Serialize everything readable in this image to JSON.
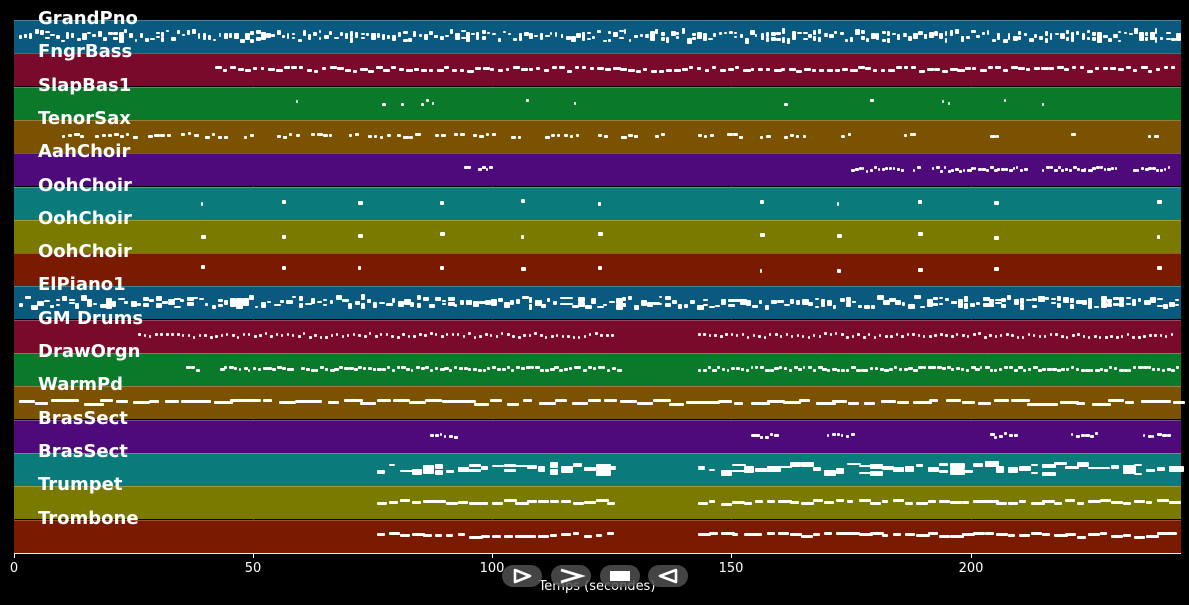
{
  "chart_data": {
    "type": "piano-roll",
    "xlabel": "Temps (secondes)",
    "xlim": [
      0,
      244
    ],
    "xticks": [
      0,
      50,
      100,
      150,
      200
    ],
    "tracks": [
      {
        "name": "GrandPno",
        "color": "#0a5a80",
        "density": "dense",
        "segments": [
          [
            1,
            243
          ]
        ],
        "step": 1.1,
        "len": 0.8,
        "size": "big"
      },
      {
        "name": "FngrBass",
        "color": "#7a0a2a",
        "density": "mid",
        "segments": [
          [
            42,
            243
          ]
        ],
        "step": 1.6,
        "len": 1.2,
        "size": "small"
      },
      {
        "name": "SlapBas1",
        "color": "#0a7a2a",
        "density": "sparse",
        "segments": [
          [
            59,
            60
          ],
          [
            77,
            78
          ],
          [
            81,
            82
          ],
          [
            85,
            88
          ],
          [
            107,
            108
          ],
          [
            117,
            118
          ],
          [
            161,
            162
          ],
          [
            179,
            180
          ],
          [
            194,
            196
          ],
          [
            207,
            208
          ],
          [
            215,
            216
          ]
        ],
        "step": 1.2,
        "len": 0.6,
        "size": "small"
      },
      {
        "name": "TenorSax",
        "color": "#7a5200",
        "density": "sparse",
        "segments": [
          [
            10,
            14
          ],
          [
            17,
            26
          ],
          [
            28,
            32
          ],
          [
            35,
            38
          ],
          [
            40,
            44
          ],
          [
            48,
            50
          ],
          [
            55,
            59
          ],
          [
            62,
            66
          ],
          [
            70,
            72
          ],
          [
            74,
            78
          ],
          [
            80,
            84
          ],
          [
            88,
            90
          ],
          [
            92,
            94
          ],
          [
            96,
            100
          ],
          [
            104,
            106
          ],
          [
            111,
            118
          ],
          [
            122,
            124
          ],
          [
            127,
            130
          ],
          [
            134,
            136
          ],
          [
            143,
            146
          ],
          [
            149,
            152
          ],
          [
            156,
            158
          ],
          [
            161,
            166
          ],
          [
            173,
            175
          ],
          [
            186,
            188
          ],
          [
            204,
            206
          ],
          [
            221,
            222
          ],
          [
            237,
            239
          ]
        ],
        "step": 1.3,
        "len": 0.9,
        "size": "small"
      },
      {
        "name": "AahChoir",
        "color": "#4e0a7a",
        "density": "mid",
        "segments": [
          [
            94,
            95
          ],
          [
            97,
            100
          ],
          [
            175,
            186
          ],
          [
            188,
            189
          ],
          [
            192,
            212
          ],
          [
            215,
            231
          ],
          [
            234,
            242
          ]
        ],
        "step": 0.8,
        "len": 0.7,
        "size": "small"
      },
      {
        "name": "OohChoir",
        "color": "#0a7a7a",
        "density": "points",
        "segments": [
          [
            39,
            39
          ],
          [
            56,
            56
          ],
          [
            72,
            72
          ],
          [
            89,
            89
          ],
          [
            106,
            106
          ],
          [
            122,
            122
          ],
          [
            156,
            156
          ],
          [
            172,
            172
          ],
          [
            189,
            189
          ],
          [
            205,
            205
          ],
          [
            239,
            239
          ]
        ],
        "step": 1,
        "len": 0.8,
        "size": "small"
      },
      {
        "name": "OohChoir",
        "color": "#7a7a00",
        "density": "points",
        "segments": [
          [
            39,
            39
          ],
          [
            56,
            56
          ],
          [
            72,
            72
          ],
          [
            89,
            89
          ],
          [
            106,
            106
          ],
          [
            122,
            122
          ],
          [
            156,
            156
          ],
          [
            172,
            172
          ],
          [
            189,
            189
          ],
          [
            205,
            205
          ],
          [
            239,
            239
          ]
        ],
        "step": 1,
        "len": 0.8,
        "size": "small"
      },
      {
        "name": "OohChoir",
        "color": "#7a1a00",
        "density": "points",
        "segments": [
          [
            39,
            39
          ],
          [
            56,
            56
          ],
          [
            72,
            72
          ],
          [
            89,
            89
          ],
          [
            106,
            106
          ],
          [
            122,
            122
          ],
          [
            156,
            156
          ],
          [
            172,
            172
          ],
          [
            189,
            189
          ],
          [
            205,
            205
          ],
          [
            239,
            239
          ]
        ],
        "step": 1,
        "len": 0.8,
        "size": "small"
      },
      {
        "name": "ElPiano1",
        "color": "#0a5a80",
        "density": "dense",
        "segments": [
          [
            1,
            243
          ]
        ],
        "step": 1.3,
        "len": 1.1,
        "size": "big"
      },
      {
        "name": "GM Drums",
        "color": "#7a0a2a",
        "density": "dense",
        "segments": [
          [
            26,
            126
          ],
          [
            143,
            243
          ]
        ],
        "step": 1.15,
        "len": 0.5,
        "size": "small"
      },
      {
        "name": "DrawOrgn",
        "color": "#0a7a2a",
        "density": "mid",
        "segments": [
          [
            36,
            38
          ],
          [
            43,
            48
          ],
          [
            49,
            52
          ],
          [
            53,
            58
          ],
          [
            60,
            64
          ],
          [
            65,
            126
          ],
          [
            143,
            243
          ]
        ],
        "step": 1.0,
        "len": 0.8,
        "size": "small"
      },
      {
        "name": "WarmPd",
        "color": "#7a5200",
        "density": "mid",
        "segments": [
          [
            1,
            243
          ]
        ],
        "step": 3.4,
        "len": 3.0,
        "size": "small"
      },
      {
        "name": "BrasSect",
        "color": "#4e0a7a",
        "density": "sparse",
        "segments": [
          [
            87,
            92
          ],
          [
            154,
            159
          ],
          [
            170,
            175
          ],
          [
            204,
            209
          ],
          [
            221,
            226
          ],
          [
            236,
            241
          ]
        ],
        "step": 1.0,
        "len": 0.7,
        "size": "small"
      },
      {
        "name": "BrasSect",
        "color": "#0a7a7a",
        "density": "mid",
        "segments": [
          [
            76,
            126
          ],
          [
            143,
            243
          ]
        ],
        "step": 2.4,
        "len": 2.2,
        "size": "big"
      },
      {
        "name": "Trumpet",
        "color": "#7a7a00",
        "density": "mid",
        "segments": [
          [
            76,
            126
          ],
          [
            143,
            243
          ]
        ],
        "step": 2.4,
        "len": 2.1,
        "size": "small"
      },
      {
        "name": "Trombone",
        "color": "#7a1a00",
        "density": "mid",
        "segments": [
          [
            76,
            126
          ],
          [
            143,
            243
          ]
        ],
        "step": 2.4,
        "len": 2.1,
        "size": "small"
      }
    ]
  },
  "controls": {
    "play_forward": "play-icon",
    "fast_forward": "fast-forward-icon",
    "stop": "stop-icon",
    "play_backward": "rewind-icon"
  }
}
